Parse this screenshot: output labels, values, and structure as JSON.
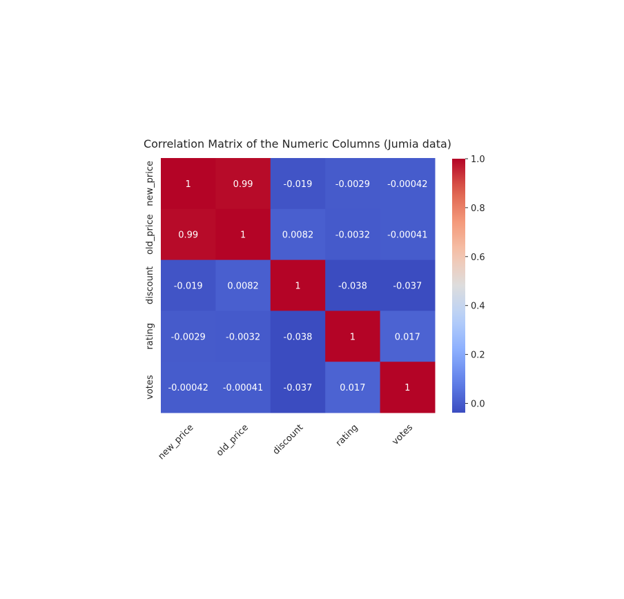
{
  "chart_data": {
    "type": "heatmap",
    "title": "Correlation Matrix of the Numeric Columns (Jumia data)",
    "rows": [
      "new_price",
      "old_price",
      "discount",
      "rating",
      "votes"
    ],
    "columns": [
      "new_price",
      "old_price",
      "discount",
      "rating",
      "votes"
    ],
    "values": [
      [
        1,
        0.99,
        -0.019,
        -0.0029,
        -0.00042
      ],
      [
        0.99,
        1,
        0.0082,
        -0.0032,
        -0.00041
      ],
      [
        -0.019,
        0.0082,
        1,
        -0.038,
        -0.037
      ],
      [
        -0.0029,
        -0.0032,
        -0.038,
        1,
        0.017
      ],
      [
        -0.00042,
        -0.00041,
        -0.037,
        0.017,
        1
      ]
    ],
    "annotations": [
      [
        "1",
        "0.99",
        "-0.019",
        "-0.0029",
        "-0.00042"
      ],
      [
        "0.99",
        "1",
        "0.0082",
        "-0.0032",
        "-0.00041"
      ],
      [
        "-0.019",
        "0.0082",
        "1",
        "-0.038",
        "-0.037"
      ],
      [
        "-0.0029",
        "-0.0032",
        "-0.038",
        "1",
        "0.017"
      ],
      [
        "-0.00042",
        "-0.00041",
        "-0.037",
        "0.017",
        "1"
      ]
    ],
    "colormap": "coolwarm",
    "colorbar": {
      "min": -0.038,
      "max": 1.0,
      "ticks": [
        0.0,
        0.2,
        0.4,
        0.6,
        0.8,
        1.0
      ],
      "tick_labels": [
        "0.0",
        "0.2",
        "0.4",
        "0.6",
        "0.8",
        "1.0"
      ]
    },
    "xlabel": "",
    "ylabel": "",
    "grid": false
  }
}
